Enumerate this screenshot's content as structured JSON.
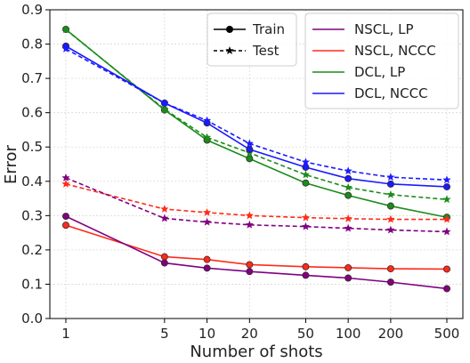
{
  "chart_data": {
    "type": "line",
    "xlabel": "Number of shots",
    "ylabel": "Error",
    "x": [
      1,
      5,
      10,
      20,
      50,
      100,
      200,
      500
    ],
    "x_tick_labels": [
      "1",
      "5",
      "10",
      "20",
      "50",
      "100",
      "200",
      "500"
    ],
    "x_scale": "log",
    "ylim": [
      0.0,
      0.9
    ],
    "y_ticks": [
      "0.0",
      "0.1",
      "0.2",
      "0.3",
      "0.4",
      "0.5",
      "0.6",
      "0.7",
      "0.8",
      "0.9"
    ],
    "grid": true,
    "legends": {
      "style": {
        "placement": "top-center",
        "entries": [
          {
            "label": "Train",
            "line": "solid",
            "marker": "circle"
          },
          {
            "label": "Test",
            "line": "dashed",
            "marker": "star"
          }
        ]
      },
      "methods": {
        "placement": "top-right",
        "entries": [
          {
            "label": "NSCL, LP",
            "color": "#800080"
          },
          {
            "label": "NSCL, NCCC",
            "color": "#ff2a1a"
          },
          {
            "label": "DCL, LP",
            "color": "#1a8c1a"
          },
          {
            "label": "DCL, NCCC",
            "color": "#1a1aff"
          }
        ]
      }
    },
    "series": [
      {
        "method": "NSCL, LP",
        "split": "Train",
        "color": "#800080",
        "values": [
          0.298,
          0.162,
          0.147,
          0.137,
          0.126,
          0.118,
          0.106,
          0.087
        ]
      },
      {
        "method": "NSCL, LP",
        "split": "Test",
        "color": "#800080",
        "values": [
          0.41,
          0.292,
          0.281,
          0.273,
          0.268,
          0.263,
          0.258,
          0.253
        ]
      },
      {
        "method": "NSCL, NCCC",
        "split": "Train",
        "color": "#ff2a1a",
        "values": [
          0.272,
          0.18,
          0.172,
          0.157,
          0.151,
          0.148,
          0.145,
          0.144
        ]
      },
      {
        "method": "NSCL, NCCC",
        "split": "Test",
        "color": "#ff2a1a",
        "values": [
          0.392,
          0.319,
          0.309,
          0.3,
          0.294,
          0.291,
          0.289,
          0.289
        ]
      },
      {
        "method": "DCL, LP",
        "split": "Train",
        "color": "#1a8c1a",
        "values": [
          0.843,
          0.608,
          0.52,
          0.466,
          0.395,
          0.359,
          0.328,
          0.295
        ]
      },
      {
        "method": "DCL, LP",
        "split": "Test",
        "color": "#1a8c1a",
        "values": [
          0.842,
          0.61,
          0.528,
          0.483,
          0.419,
          0.382,
          0.361,
          0.347
        ]
      },
      {
        "method": "DCL, NCCC",
        "split": "Train",
        "color": "#1a1aff",
        "values": [
          0.794,
          0.628,
          0.57,
          0.493,
          0.441,
          0.408,
          0.392,
          0.384
        ]
      },
      {
        "method": "DCL, NCCC",
        "split": "Test",
        "color": "#1a1aff",
        "values": [
          0.786,
          0.628,
          0.577,
          0.51,
          0.456,
          0.43,
          0.412,
          0.404
        ]
      }
    ]
  }
}
